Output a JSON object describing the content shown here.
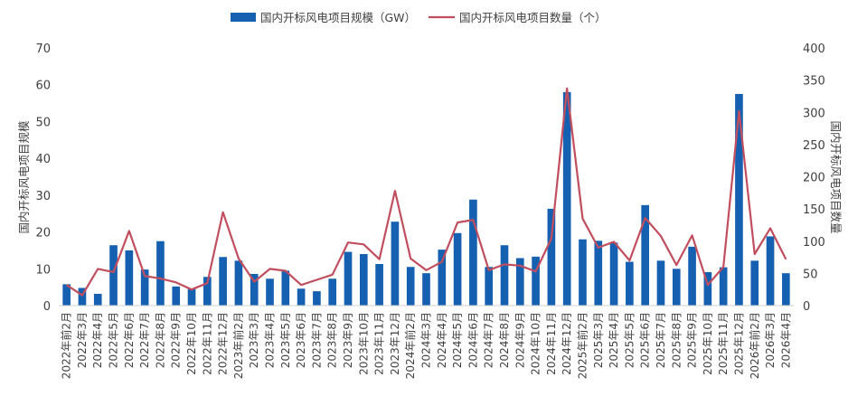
{
  "chart_data": {
    "type": "bar+line",
    "categories": [
      "2022年前2月",
      "2022年3月",
      "2022年4月",
      "2022年5月",
      "2022年6月",
      "2022年7月",
      "2022年8月",
      "2022年9月",
      "2022年10月",
      "2022年11月",
      "2022年12月",
      "2023年前2月",
      "2023年3月",
      "2023年4月",
      "2023年5月",
      "2023年6月",
      "2023年7月",
      "2023年8月",
      "2023年9月",
      "2023年10月",
      "2023年11月",
      "2023年12月",
      "2024年前2月",
      "2024年3月",
      "2024年4月",
      "2024年5月",
      "2024年6月",
      "2024年7月",
      "2024年8月",
      "2024年9月",
      "2024年10月",
      "2024年11月",
      "2024年12月",
      "2025年前2月",
      "2025年3月",
      "2025年4月",
      "2025年5月",
      "2025年6月",
      "2025年7月",
      "2025年8月",
      "2025年9月",
      "2025年10月",
      "2025年11月",
      "2025年12月",
      "2026年前2月",
      "2026年3月",
      "2026年4月"
    ],
    "series": [
      {
        "name": "国内开标风电项目规模（GW）",
        "type": "bar",
        "axis": "left",
        "color": "#1560b0",
        "values": [
          5.8,
          4.8,
          3.2,
          16.4,
          15,
          9.8,
          17.5,
          5.2,
          4.6,
          7.8,
          13.2,
          12.2,
          8.6,
          7.3,
          9.5,
          4.6,
          3.9,
          7.3,
          14.6,
          14,
          11.3,
          22.8,
          10.5,
          8.8,
          15.2,
          19.7,
          28.8,
          10.5,
          16.4,
          12.9,
          13.3,
          26.3,
          58,
          18,
          17.6,
          17.1,
          11.9,
          27.3,
          12.2,
          10,
          16,
          9.1,
          10.4,
          57.5,
          12.2,
          18.8,
          8.8
        ]
      },
      {
        "name": "国内开标风电项目数量（个）",
        "type": "line",
        "axis": "right",
        "color": "#c14e5e",
        "values": [
          32,
          16,
          57,
          52,
          116,
          46,
          42,
          36,
          25,
          35,
          145,
          73,
          37,
          57,
          54,
          32,
          40,
          48,
          98,
          95,
          72,
          178,
          73,
          55,
          68,
          129,
          133,
          55,
          64,
          62,
          53,
          104,
          337,
          135,
          90,
          99,
          70,
          136,
          108,
          63,
          109,
          32,
          60,
          302,
          80,
          120,
          72
        ]
      }
    ],
    "left_axis": {
      "title": "国内开标风电项目规模",
      "min": 0,
      "max": 70,
      "ticks": [
        0,
        10,
        20,
        30,
        40,
        50,
        60,
        70
      ]
    },
    "right_axis": {
      "title": "国内开标风电项目数量",
      "min": 0,
      "max": 400,
      "ticks": [
        0,
        50,
        100,
        150,
        200,
        250,
        300,
        350,
        400
      ]
    },
    "grid": false,
    "legend": "top"
  }
}
